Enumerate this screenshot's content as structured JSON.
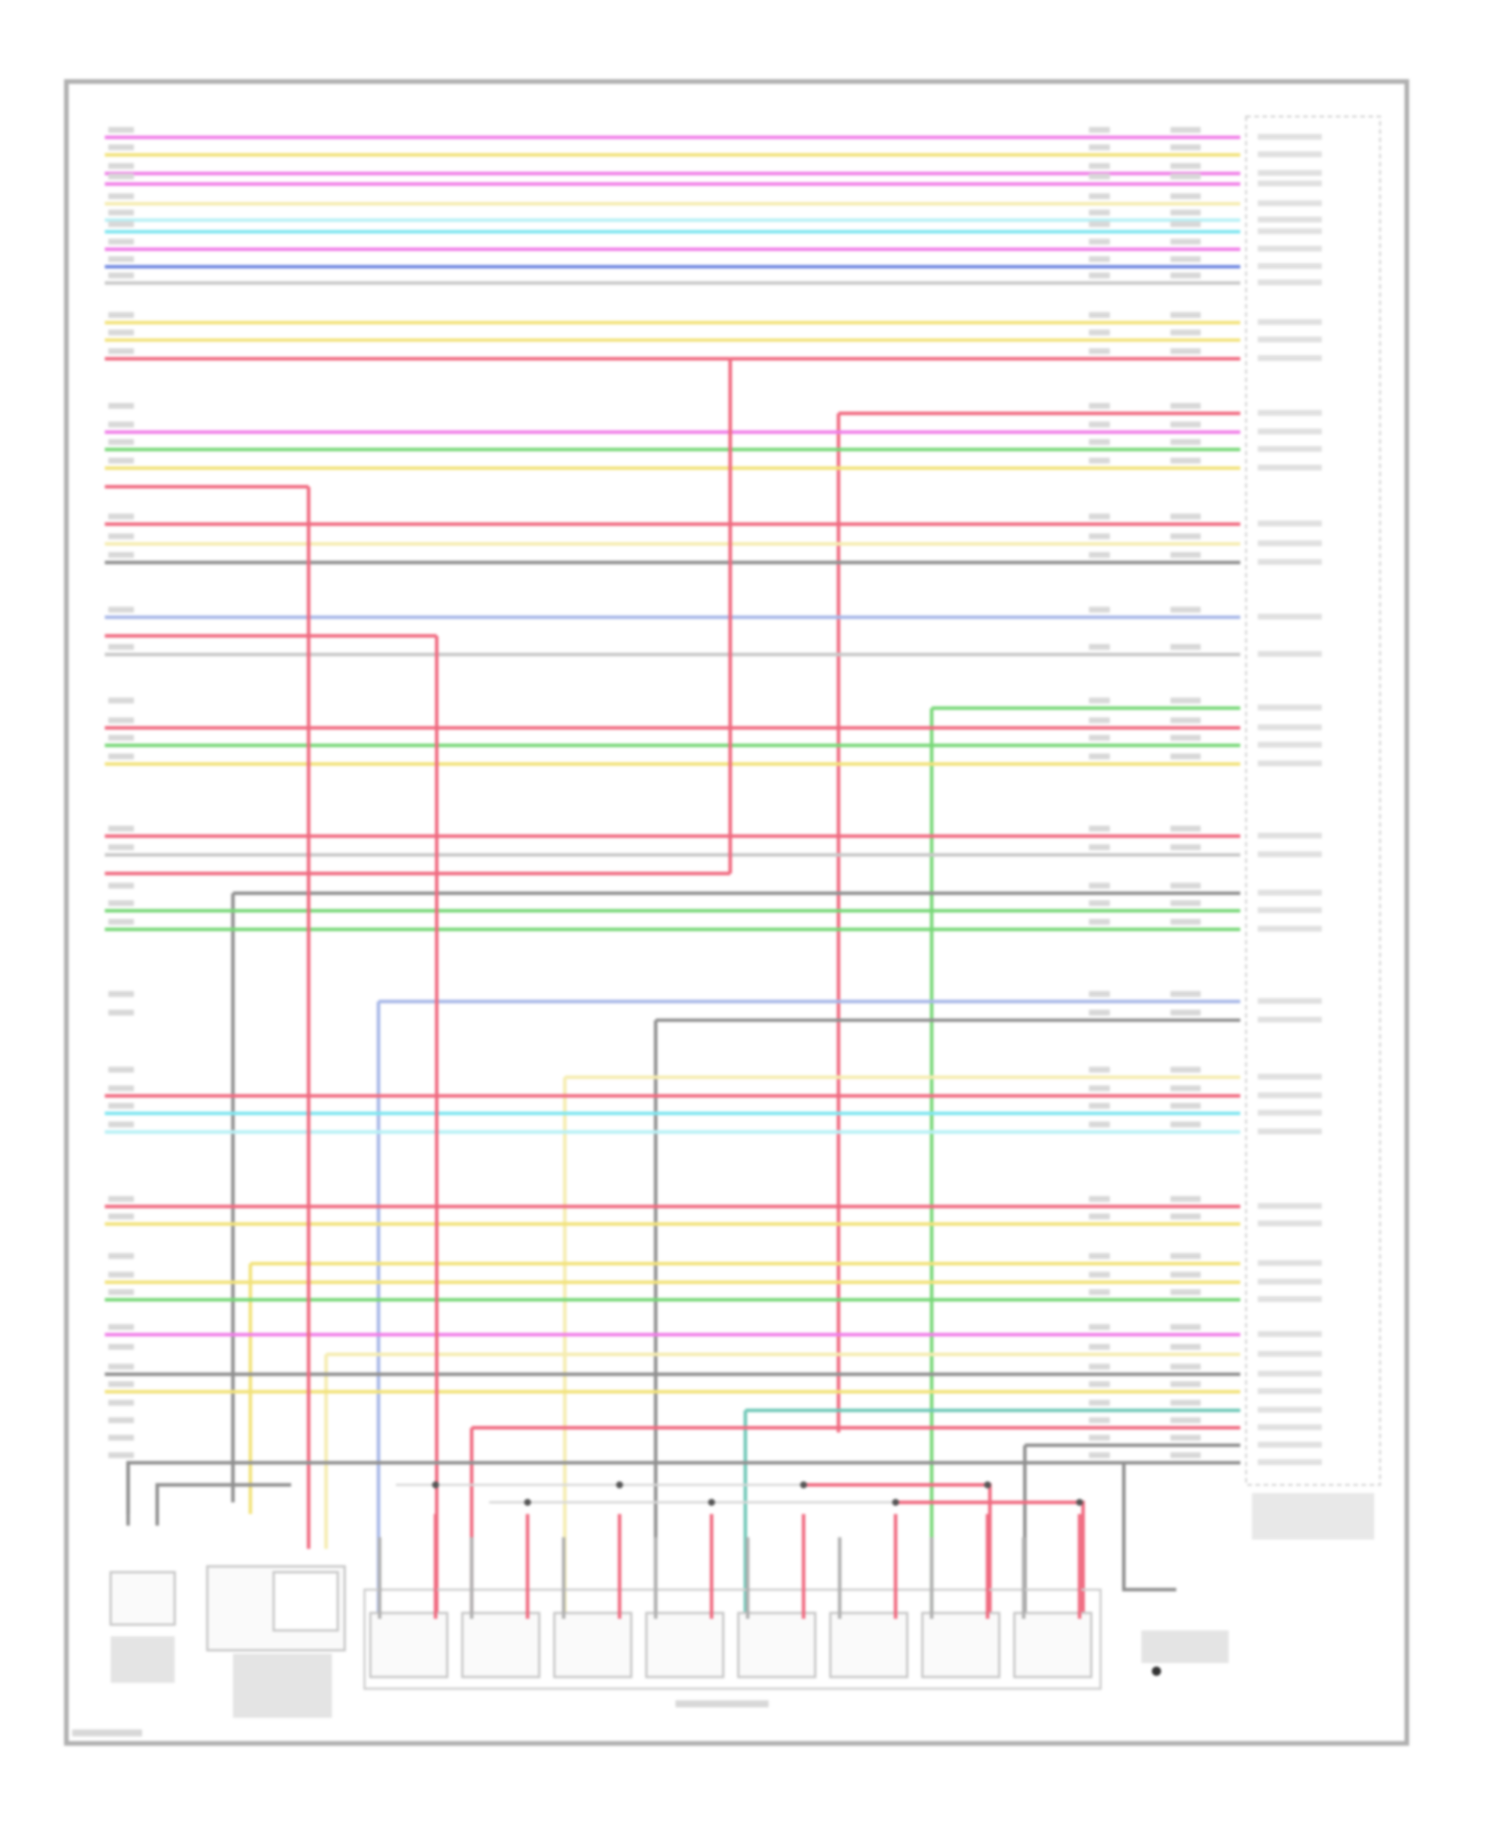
{
  "diagram": {
    "type": "wiring-diagram",
    "wire_colors": {
      "pink": "#f07ee8",
      "yellow": "#f2e27a",
      "light_yellow": "#f5ecb0",
      "cyan": "#7fe6f0",
      "light_cyan": "#b8f0f5",
      "blue": "#7088e0",
      "light_blue": "#a8b8e8",
      "grey": "#909090",
      "light_grey": "#c8c8c8",
      "red": "#f06a80",
      "green": "#78d878",
      "teal": "#70c8b8"
    },
    "frame_color": "#b0b0b0",
    "components": {
      "injectors": 8,
      "left_sensors": 2,
      "ground_points": 1
    }
  }
}
